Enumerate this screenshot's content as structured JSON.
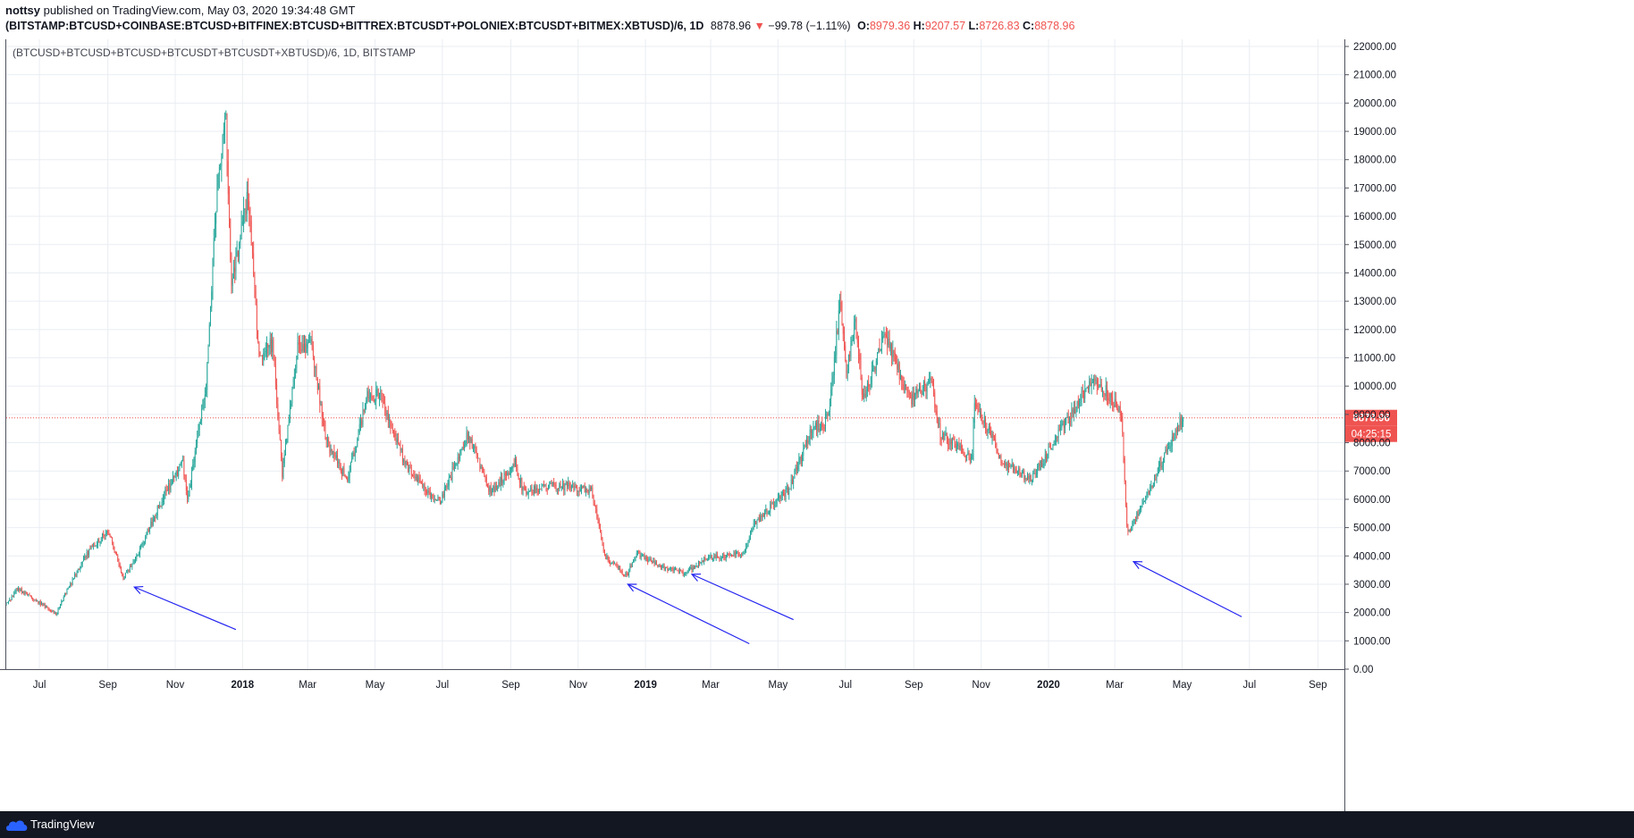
{
  "header": {
    "publisher": "nottsy",
    "published_text": "published on TradingView.com, May 03, 2020 19:34:48 GMT",
    "symbol": "(BITSTAMP:BTCUSD+COINBASE:BTCUSD+BITFINEX:BTCUSD+BITTREX:BTCUSDT+POLONIEX:BTCUSDT+BITMEX:XBTUSD)/6, 1D",
    "last": "8878.96",
    "change_arrow": "▼",
    "change": "−99.78 (−1.11%)",
    "o_label": "O:",
    "o": "8979.36",
    "h_label": "H:",
    "h": "9207.57",
    "l_label": "L:",
    "l": "8726.83",
    "c_label": "C:",
    "c": "8878.96"
  },
  "footer": {
    "brand": "TradingView"
  },
  "colors": {
    "up": "#26a69a",
    "down": "#ef5350",
    "arrows": "#2424f0",
    "grid": "#e9edf2",
    "price_line": "#ef5350"
  },
  "chart_data": {
    "type": "candlestick",
    "title": "(BTCUSD+BTCUSD+BTCUSD+BTCUSDT+BTCUSDT+XBTUSD)/6, 1D, BITSTAMP",
    "ylim": [
      0,
      22000
    ],
    "y_ticks": [
      "22000.00",
      "21000.00",
      "20000.00",
      "19000.00",
      "18000.00",
      "17000.00",
      "16000.00",
      "15000.00",
      "14000.00",
      "13000.00",
      "12000.00",
      "11000.00",
      "10000.00",
      "9000.00",
      "8000.00",
      "7000.00",
      "6000.00",
      "5000.00",
      "4000.00",
      "3000.00",
      "2000.00",
      "1000.00",
      "0.00"
    ],
    "y_tick_values": [
      22000,
      21000,
      20000,
      19000,
      18000,
      17000,
      16000,
      15000,
      14000,
      13000,
      12000,
      11000,
      10000,
      9000,
      8000,
      7000,
      6000,
      5000,
      4000,
      3000,
      2000,
      1000,
      0
    ],
    "x_range": [
      "2017-06-01",
      "2020-09-25"
    ],
    "x_ticks": [
      {
        "date": "2017-07-01",
        "label": "Jul",
        "bold": false
      },
      {
        "date": "2017-09-01",
        "label": "Sep",
        "bold": false
      },
      {
        "date": "2017-11-01",
        "label": "Nov",
        "bold": false
      },
      {
        "date": "2018-01-01",
        "label": "2018",
        "bold": true
      },
      {
        "date": "2018-03-01",
        "label": "Mar",
        "bold": false
      },
      {
        "date": "2018-05-01",
        "label": "May",
        "bold": false
      },
      {
        "date": "2018-07-01",
        "label": "Jul",
        "bold": false
      },
      {
        "date": "2018-09-01",
        "label": "Sep",
        "bold": false
      },
      {
        "date": "2018-11-01",
        "label": "Nov",
        "bold": false
      },
      {
        "date": "2019-01-01",
        "label": "2019",
        "bold": true
      },
      {
        "date": "2019-03-01",
        "label": "Mar",
        "bold": false
      },
      {
        "date": "2019-05-01",
        "label": "May",
        "bold": false
      },
      {
        "date": "2019-07-01",
        "label": "Jul",
        "bold": false
      },
      {
        "date": "2019-09-01",
        "label": "Sep",
        "bold": false
      },
      {
        "date": "2019-11-01",
        "label": "Nov",
        "bold": false
      },
      {
        "date": "2020-01-01",
        "label": "2020",
        "bold": true
      },
      {
        "date": "2020-03-01",
        "label": "Mar",
        "bold": false
      },
      {
        "date": "2020-05-01",
        "label": "May",
        "bold": false
      },
      {
        "date": "2020-07-01",
        "label": "Jul",
        "bold": false
      },
      {
        "date": "2020-09-01",
        "label": "Sep",
        "bold": false
      }
    ],
    "series": [
      {
        "anchors": [
          [
            "2017-06-01",
            2300
          ],
          [
            "2017-06-12",
            2850
          ],
          [
            "2017-06-25",
            2500
          ],
          [
            "2017-07-16",
            1950
          ],
          [
            "2017-07-25",
            2700
          ],
          [
            "2017-08-15",
            4200
          ],
          [
            "2017-09-01",
            4900
          ],
          [
            "2017-09-15",
            3200
          ],
          [
            "2017-10-01",
            4300
          ],
          [
            "2017-10-20",
            6000
          ],
          [
            "2017-11-08",
            7300
          ],
          [
            "2017-11-12",
            5900
          ],
          [
            "2017-11-29",
            10000
          ],
          [
            "2017-12-08",
            16500
          ],
          [
            "2017-12-17",
            19500
          ],
          [
            "2017-12-22",
            13500
          ],
          [
            "2018-01-06",
            16800
          ],
          [
            "2018-01-16",
            11000
          ],
          [
            "2018-01-28",
            11500
          ],
          [
            "2018-02-06",
            6900
          ],
          [
            "2018-02-20",
            11300
          ],
          [
            "2018-03-05",
            11400
          ],
          [
            "2018-03-18",
            8000
          ],
          [
            "2018-04-06",
            6700
          ],
          [
            "2018-04-24",
            9600
          ],
          [
            "2018-05-05",
            9700
          ],
          [
            "2018-05-28",
            7300
          ],
          [
            "2018-06-12",
            6500
          ],
          [
            "2018-06-29",
            5900
          ],
          [
            "2018-07-24",
            8300
          ],
          [
            "2018-08-14",
            6200
          ],
          [
            "2018-09-05",
            7300
          ],
          [
            "2018-09-12",
            6300
          ],
          [
            "2018-10-15",
            6500
          ],
          [
            "2018-11-13",
            6300
          ],
          [
            "2018-11-25",
            4000
          ],
          [
            "2018-12-15",
            3300
          ],
          [
            "2018-12-24",
            4100
          ],
          [
            "2019-01-15",
            3600
          ],
          [
            "2019-02-07",
            3400
          ],
          [
            "2019-02-24",
            3900
          ],
          [
            "2019-03-31",
            4100
          ],
          [
            "2019-04-10",
            5200
          ],
          [
            "2019-05-10",
            6300
          ],
          [
            "2019-06-01",
            8500
          ],
          [
            "2019-06-15",
            8800
          ],
          [
            "2019-06-26",
            12800
          ],
          [
            "2019-07-02",
            10500
          ],
          [
            "2019-07-10",
            12200
          ],
          [
            "2019-07-17",
            9500
          ],
          [
            "2019-08-06",
            11800
          ],
          [
            "2019-08-29",
            9500
          ],
          [
            "2019-09-16",
            10200
          ],
          [
            "2019-09-25",
            8300
          ],
          [
            "2019-10-24",
            7500
          ],
          [
            "2019-10-26",
            9500
          ],
          [
            "2019-11-22",
            7200
          ],
          [
            "2019-12-17",
            6700
          ],
          [
            "2020-01-14",
            8600
          ],
          [
            "2020-02-12",
            10300
          ],
          [
            "2020-03-07",
            9100
          ],
          [
            "2020-03-12",
            5000
          ],
          [
            "2020-03-13",
            4800
          ],
          [
            "2020-04-01",
            6300
          ],
          [
            "2020-04-29",
            8700
          ],
          [
            "2020-05-03",
            8880
          ]
        ]
      }
    ],
    "last_price": "8878.96",
    "countdown": "04:25:15",
    "annotations": [
      {
        "type": "arrow",
        "from": [
          "2017-12-26",
          1400
        ],
        "to": [
          "2017-09-25",
          2900
        ]
      },
      {
        "type": "arrow",
        "from": [
          "2019-04-05",
          900
        ],
        "to": [
          "2018-12-16",
          3000
        ]
      },
      {
        "type": "arrow",
        "from": [
          "2019-05-15",
          1750
        ],
        "to": [
          "2019-02-12",
          3350
        ]
      },
      {
        "type": "arrow",
        "from": [
          "2020-06-24",
          1850
        ],
        "to": [
          "2020-03-18",
          3800
        ]
      }
    ]
  }
}
